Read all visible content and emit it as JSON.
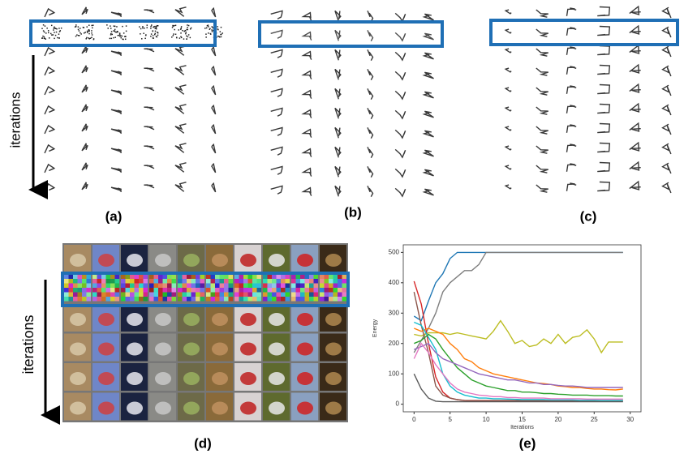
{
  "figure": {
    "panel_a": {
      "label": "(a)",
      "side_label": "iterations"
    },
    "panel_b": {
      "label": "(b)"
    },
    "panel_c": {
      "label": "(c)"
    },
    "panel_d": {
      "label": "(d)",
      "side_label": "iterations"
    },
    "panel_e": {
      "label": "(e)"
    }
  },
  "chart_data": {
    "type": "line",
    "xlabel": "Iterations",
    "ylabel": "Energy",
    "x": [
      0,
      1,
      2,
      3,
      4,
      5,
      6,
      7,
      8,
      9,
      10,
      11,
      12,
      13,
      14,
      15,
      16,
      17,
      18,
      19,
      20,
      21,
      22,
      23,
      24,
      25,
      26,
      27,
      28,
      29
    ],
    "xlim": [
      -1.5,
      31.5
    ],
    "ylim": [
      -25,
      525
    ],
    "xticks": [
      0,
      5,
      10,
      15,
      20,
      25,
      30
    ],
    "yticks": [
      0,
      100,
      200,
      300,
      400,
      500
    ],
    "series": [
      {
        "color": "#1f77b4",
        "values": [
          290,
          275,
          340,
          400,
          430,
          480,
          500,
          500,
          500,
          500,
          500,
          500,
          500,
          500,
          500,
          500,
          500,
          500,
          500,
          500,
          500,
          500,
          500,
          500,
          500,
          500,
          500,
          500,
          500,
          500
        ]
      },
      {
        "color": "#7f7f7f",
        "values": [
          170,
          210,
          250,
          300,
          370,
          400,
          420,
          440,
          440,
          460,
          500,
          500,
          500,
          500,
          500,
          500,
          500,
          500,
          500,
          500,
          500,
          500,
          500,
          500,
          500,
          500,
          500,
          500,
          500,
          500
        ]
      },
      {
        "color": "#bcbd22",
        "values": [
          230,
          225,
          235,
          235,
          235,
          230,
          235,
          230,
          225,
          220,
          215,
          240,
          275,
          240,
          200,
          210,
          190,
          195,
          215,
          200,
          230,
          200,
          220,
          225,
          245,
          215,
          170,
          205,
          205,
          205
        ]
      },
      {
        "color": "#d62728",
        "values": [
          405,
          330,
          200,
          90,
          40,
          20,
          15,
          12,
          10,
          10,
          10,
          10,
          10,
          10,
          10,
          10,
          10,
          10,
          10,
          10,
          10,
          10,
          10,
          10,
          10,
          10,
          10,
          10,
          10,
          10
        ]
      },
      {
        "color": "#8c564b",
        "values": [
          370,
          260,
          170,
          60,
          30,
          20,
          15,
          12,
          12,
          12,
          12,
          12,
          12,
          12,
          12,
          12,
          12,
          12,
          12,
          12,
          12,
          12,
          12,
          12,
          12,
          12,
          12,
          12,
          12,
          12
        ]
      },
      {
        "color": "#ff7f0e",
        "values": [
          250,
          240,
          250,
          240,
          230,
          200,
          180,
          150,
          140,
          120,
          110,
          100,
          95,
          90,
          85,
          80,
          75,
          70,
          68,
          65,
          60,
          58,
          55,
          55,
          52,
          50,
          50,
          48,
          47,
          50
        ]
      },
      {
        "color": "#17becf",
        "values": [
          270,
          260,
          220,
          180,
          100,
          60,
          40,
          30,
          25,
          20,
          20,
          18,
          18,
          17,
          16,
          15,
          15,
          15,
          15,
          14,
          14,
          14,
          14,
          13,
          13,
          13,
          12,
          12,
          12,
          12
        ]
      },
      {
        "color": "#2ca02c",
        "values": [
          200,
          210,
          230,
          215,
          180,
          150,
          120,
          100,
          80,
          70,
          60,
          55,
          50,
          45,
          45,
          40,
          40,
          38,
          35,
          35,
          33,
          32,
          30,
          30,
          30,
          28,
          28,
          28,
          27,
          27
        ]
      },
      {
        "color": "#9467bd",
        "values": [
          180,
          190,
          200,
          170,
          150,
          140,
          130,
          120,
          110,
          100,
          95,
          90,
          85,
          80,
          80,
          75,
          70,
          70,
          65,
          65,
          62,
          60,
          60,
          58,
          55,
          55,
          55,
          55,
          55,
          55
        ]
      },
      {
        "color": "#e377c2",
        "values": [
          150,
          200,
          170,
          130,
          100,
          70,
          50,
          40,
          35,
          30,
          28,
          25,
          25,
          22,
          22,
          20,
          20,
          20,
          20,
          18,
          18,
          18,
          18,
          18,
          17,
          17,
          17,
          17,
          17,
          17
        ]
      },
      {
        "color": "#595959",
        "values": [
          100,
          50,
          20,
          10,
          8,
          8,
          8,
          8,
          8,
          8,
          8,
          8,
          8,
          8,
          8,
          8,
          8,
          8,
          8,
          8,
          8,
          8,
          8,
          8,
          8,
          8,
          8,
          8,
          8,
          8
        ]
      }
    ]
  }
}
